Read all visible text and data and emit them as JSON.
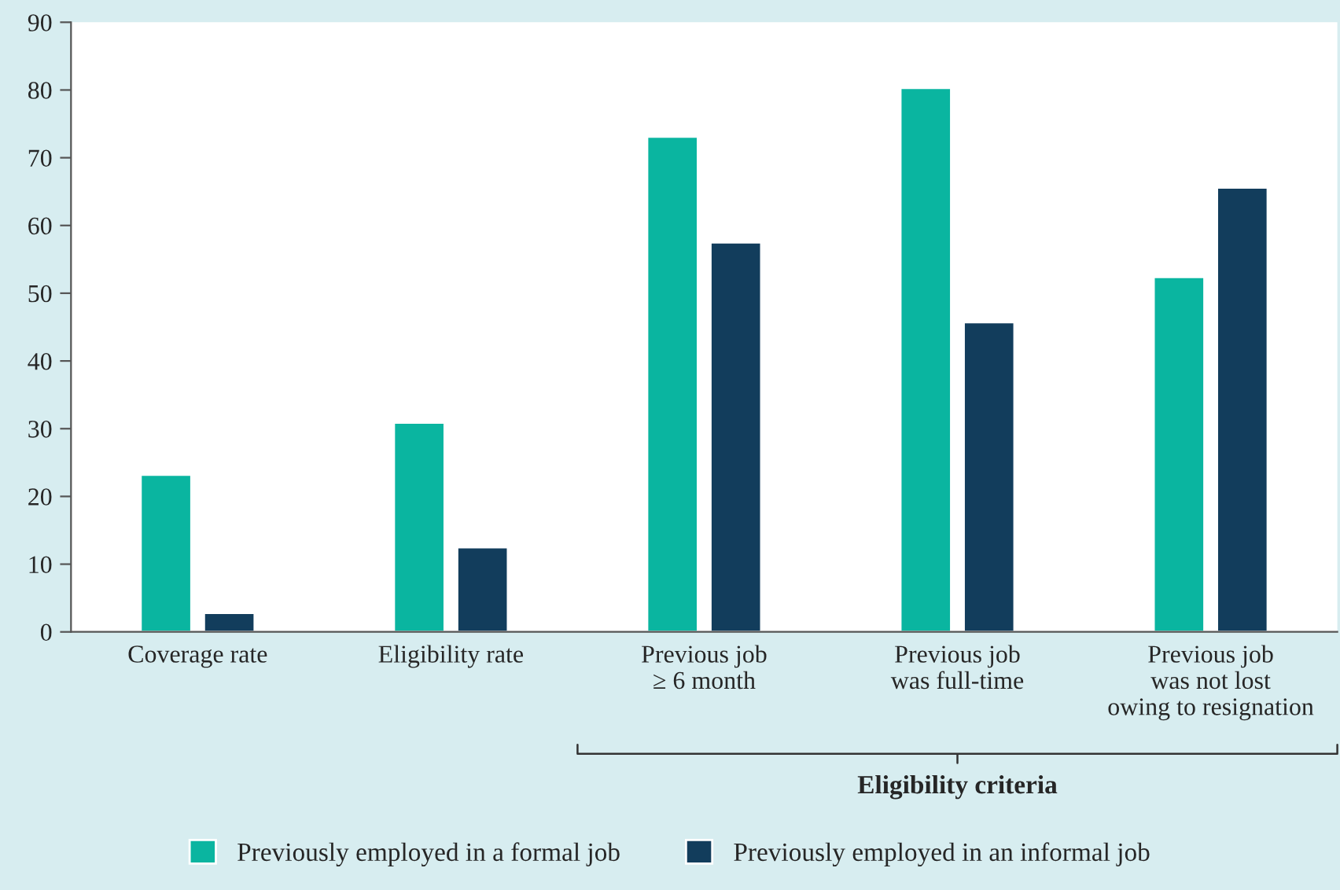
{
  "chart_data": {
    "type": "bar",
    "categories": [
      "Coverage rate",
      "Eligibility rate",
      "Previous job\n≥ 6 month",
      "Previous job\nwas full-time",
      "Previous job\nwas not lost\nowing to resignation"
    ],
    "series": [
      {
        "name": "Previously employed in a formal job",
        "color": "#0ab5a0",
        "values": [
          23.2,
          30.9,
          73.1,
          80.3,
          52.4
        ]
      },
      {
        "name": "Previously employed in an informal job",
        "color": "#123d5c",
        "values": [
          2.8,
          12.5,
          57.5,
          45.7,
          65.6
        ]
      }
    ],
    "ylim": [
      0,
      90
    ],
    "yticks": [
      0,
      10,
      20,
      30,
      40,
      50,
      60,
      70,
      80,
      90
    ],
    "annotations": [
      "Eligibility criteria"
    ],
    "grid": false,
    "legend": "bottom"
  }
}
